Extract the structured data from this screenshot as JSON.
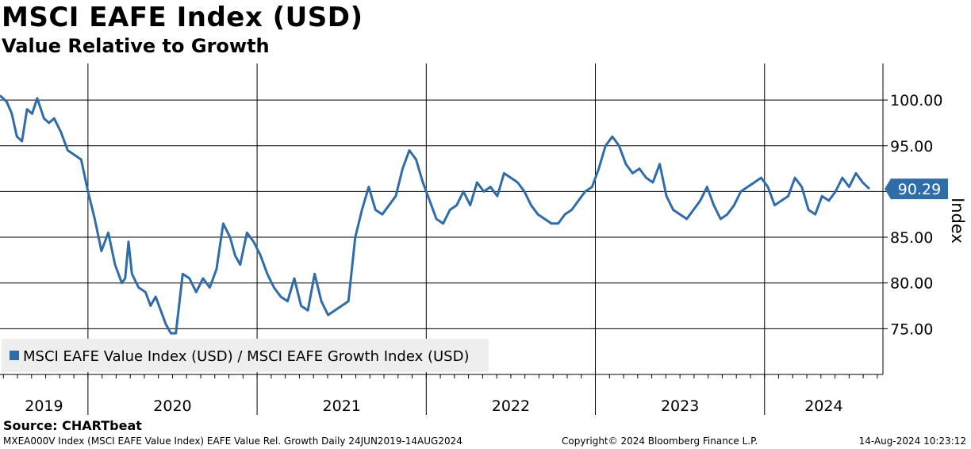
{
  "header": {
    "title": "MSCI EAFE Index (USD)",
    "subtitle": "Value Relative to Growth"
  },
  "chart_data": {
    "type": "line",
    "title": "MSCI EAFE Index (USD)",
    "subtitle": "Value Relative to Growth",
    "ylabel": "Index",
    "ylim": [
      70.0,
      104.0
    ],
    "yticks": [
      75.0,
      80.0,
      85.0,
      90.0,
      95.0,
      100.0
    ],
    "ytick_labels": [
      "75.00",
      "80.00",
      "85.00",
      "90.00",
      "95.00",
      "100.00"
    ],
    "xlim": [
      2019.48,
      2024.7
    ],
    "year_labels": [
      "2019",
      "2020",
      "2021",
      "2022",
      "2023",
      "2024"
    ],
    "year_starts": [
      2020,
      2021,
      2022,
      2023,
      2024
    ],
    "grid": true,
    "legend_position": "bottom-left",
    "last_value_label": "90.29",
    "colors": {
      "line": "#2f6ca8",
      "grid": "#000000"
    },
    "series": [
      {
        "name": "MSCI EAFE Value Index (USD) / MSCI EAFE Growth Index (USD)",
        "x": [
          2019.48,
          2019.52,
          2019.55,
          2019.58,
          2019.61,
          2019.64,
          2019.67,
          2019.7,
          2019.74,
          2019.77,
          2019.8,
          2019.84,
          2019.88,
          2019.92,
          2019.96,
          2020.0,
          2020.04,
          2020.08,
          2020.12,
          2020.16,
          2020.18,
          2020.2,
          2020.22,
          2020.24,
          2020.26,
          2020.3,
          2020.34,
          2020.37,
          2020.4,
          2020.43,
          2020.46,
          2020.49,
          2020.52,
          2020.56,
          2020.6,
          2020.64,
          2020.68,
          2020.72,
          2020.76,
          2020.8,
          2020.84,
          2020.87,
          2020.9,
          2020.94,
          2020.98,
          2021.02,
          2021.06,
          2021.1,
          2021.14,
          2021.18,
          2021.22,
          2021.26,
          2021.3,
          2021.34,
          2021.38,
          2021.42,
          2021.46,
          2021.5,
          2021.54,
          2021.58,
          2021.62,
          2021.66,
          2021.7,
          2021.74,
          2021.78,
          2021.82,
          2021.86,
          2021.9,
          2021.94,
          2021.98,
          2022.02,
          2022.06,
          2022.1,
          2022.14,
          2022.18,
          2022.22,
          2022.26,
          2022.3,
          2022.34,
          2022.38,
          2022.42,
          2022.46,
          2022.5,
          2022.54,
          2022.58,
          2022.62,
          2022.66,
          2022.7,
          2022.74,
          2022.78,
          2022.82,
          2022.86,
          2022.9,
          2022.94,
          2022.98,
          2023.02,
          2023.06,
          2023.1,
          2023.14,
          2023.18,
          2023.22,
          2023.26,
          2023.3,
          2023.34,
          2023.38,
          2023.42,
          2023.46,
          2023.5,
          2023.54,
          2023.58,
          2023.62,
          2023.66,
          2023.7,
          2023.74,
          2023.78,
          2023.82,
          2023.86,
          2023.9,
          2023.94,
          2023.98,
          2024.02,
          2024.06,
          2024.1,
          2024.14,
          2024.18,
          2024.22,
          2024.26,
          2024.3,
          2024.34,
          2024.38,
          2024.42,
          2024.46,
          2024.5,
          2024.54,
          2024.58,
          2024.62
        ],
        "values": [
          100.5,
          99.8,
          98.5,
          96.0,
          95.5,
          99.0,
          98.5,
          100.2,
          98.0,
          97.5,
          98.0,
          96.5,
          94.5,
          94.0,
          93.5,
          90.0,
          87.0,
          83.5,
          85.5,
          82.0,
          81.0,
          80.0,
          80.5,
          84.5,
          81.0,
          79.5,
          79.0,
          77.5,
          78.5,
          77.0,
          75.5,
          74.5,
          74.5,
          81.0,
          80.5,
          79.0,
          80.5,
          79.5,
          81.5,
          86.5,
          85.0,
          83.0,
          82.0,
          85.5,
          84.5,
          83.0,
          81.0,
          79.5,
          78.5,
          78.0,
          80.5,
          77.5,
          77.0,
          81.0,
          78.0,
          76.5,
          77.0,
          77.5,
          78.0,
          85.0,
          88.0,
          90.5,
          88.0,
          87.5,
          88.5,
          89.5,
          92.5,
          94.5,
          93.5,
          91.0,
          89.0,
          87.0,
          86.5,
          88.0,
          88.5,
          90.0,
          88.5,
          91.0,
          90.0,
          90.5,
          89.5,
          92.0,
          91.5,
          91.0,
          90.0,
          88.5,
          87.5,
          87.0,
          86.5,
          86.5,
          87.5,
          88.0,
          89.0,
          90.0,
          90.5,
          92.5,
          95.0,
          96.0,
          95.0,
          93.0,
          92.0,
          92.5,
          91.5,
          91.0,
          93.0,
          89.5,
          88.0,
          87.5,
          87.0,
          88.0,
          89.0,
          90.5,
          88.5,
          87.0,
          87.5,
          88.5,
          90.0,
          90.5,
          91.0,
          91.5,
          90.5,
          88.5,
          89.0,
          89.5,
          91.5,
          90.5,
          88.0,
          87.5,
          89.5,
          89.0,
          90.0,
          91.5,
          90.5,
          92.0,
          91.0,
          90.29
        ]
      }
    ]
  },
  "footer": {
    "source": "Source: CHARTbeat",
    "meta": "MXEA000V Index (MSCI EAFE Value Index) EAFE Value Rel. Growth  Daily 24JUN2019-14AUG2024",
    "copyright": "Copyright© 2024 Bloomberg Finance L.P.",
    "timestamp": "14-Aug-2024 10:23:12"
  }
}
